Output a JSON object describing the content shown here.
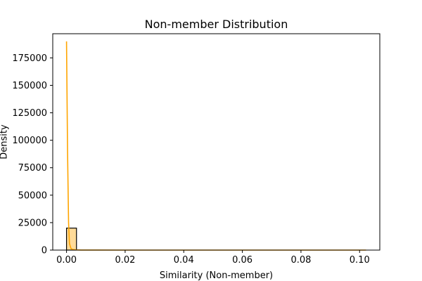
{
  "chart_data": {
    "type": "bar",
    "title": "Non-member Distribution",
    "xlabel": "Similarity (Non-member)",
    "ylabel": "Density",
    "xlim": [
      -0.0047,
      0.1069
    ],
    "ylim": [
      0,
      197000
    ],
    "xticks": [
      0.0,
      0.02,
      0.04,
      0.06,
      0.08,
      0.1
    ],
    "xtick_labels": [
      "0.00",
      "0.02",
      "0.04",
      "0.06",
      "0.08",
      "0.10"
    ],
    "yticks": [
      0,
      25000,
      50000,
      75000,
      100000,
      125000,
      150000,
      175000
    ],
    "ytick_labels": [
      "0",
      "25000",
      "50000",
      "75000",
      "100000",
      "125000",
      "150000",
      "175000"
    ],
    "grid": false,
    "histogram": {
      "bins": [
        {
          "x0": 0.0,
          "x1": 0.0034,
          "density": 20000
        }
      ],
      "fill_color": "#ffa500",
      "edge_color": "#000000"
    },
    "kde": {
      "color": "#ffa500",
      "x": [
        0.0,
        0.00035,
        0.0007,
        0.001,
        0.0015,
        0.002,
        0.003,
        0.005,
        0.01,
        0.02,
        0.05,
        0.08,
        0.1022
      ],
      "y": [
        190000,
        90000,
        25000,
        6000,
        1500,
        600,
        200,
        60,
        20,
        8,
        3,
        1,
        0
      ]
    }
  }
}
